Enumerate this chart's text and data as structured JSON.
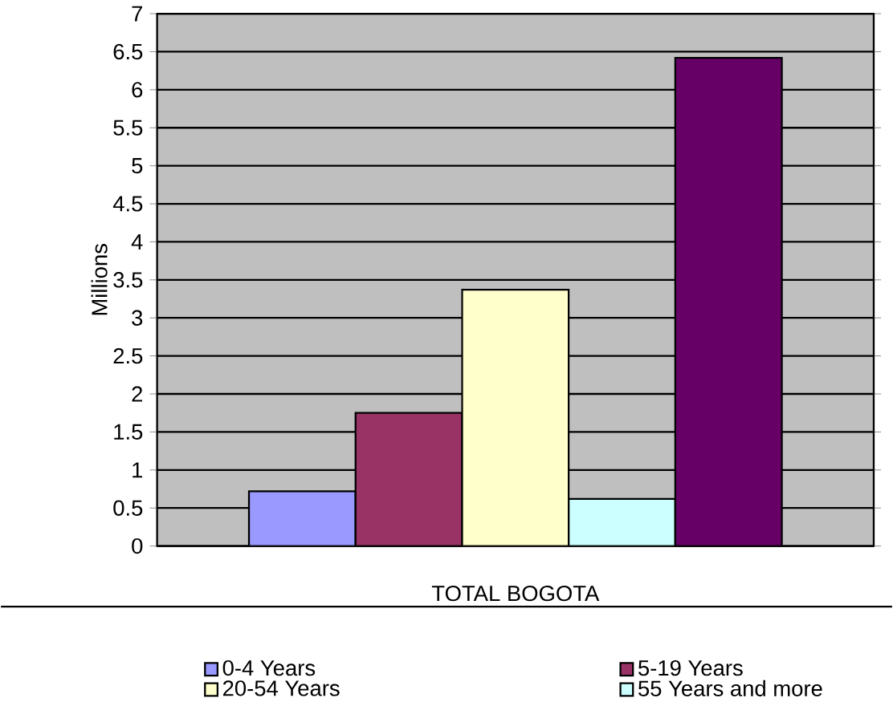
{
  "chart_data": {
    "type": "bar",
    "ylabel": "Millions",
    "categories": [
      "TOTAL BOGOTA"
    ],
    "series": [
      {
        "name": "0-4 Years",
        "color": "#9999ff",
        "values": [
          0.72
        ]
      },
      {
        "name": "5-19 Years",
        "color": "#993366",
        "values": [
          1.75
        ]
      },
      {
        "name": "20-54 Years",
        "color": "#ffffcc",
        "values": [
          3.37
        ]
      },
      {
        "name": "55 Years and more",
        "color": "#ccffff",
        "values": [
          0.62
        ]
      },
      {
        "color": "#660066",
        "values": [
          6.42
        ]
      }
    ],
    "ylim": [
      0,
      7
    ],
    "yticks": [
      0,
      0.5,
      1,
      1.5,
      2,
      2.5,
      3,
      3.5,
      4,
      4.5,
      5,
      5.5,
      6,
      6.5,
      7
    ],
    "grid": "y",
    "legend": "bottom"
  }
}
